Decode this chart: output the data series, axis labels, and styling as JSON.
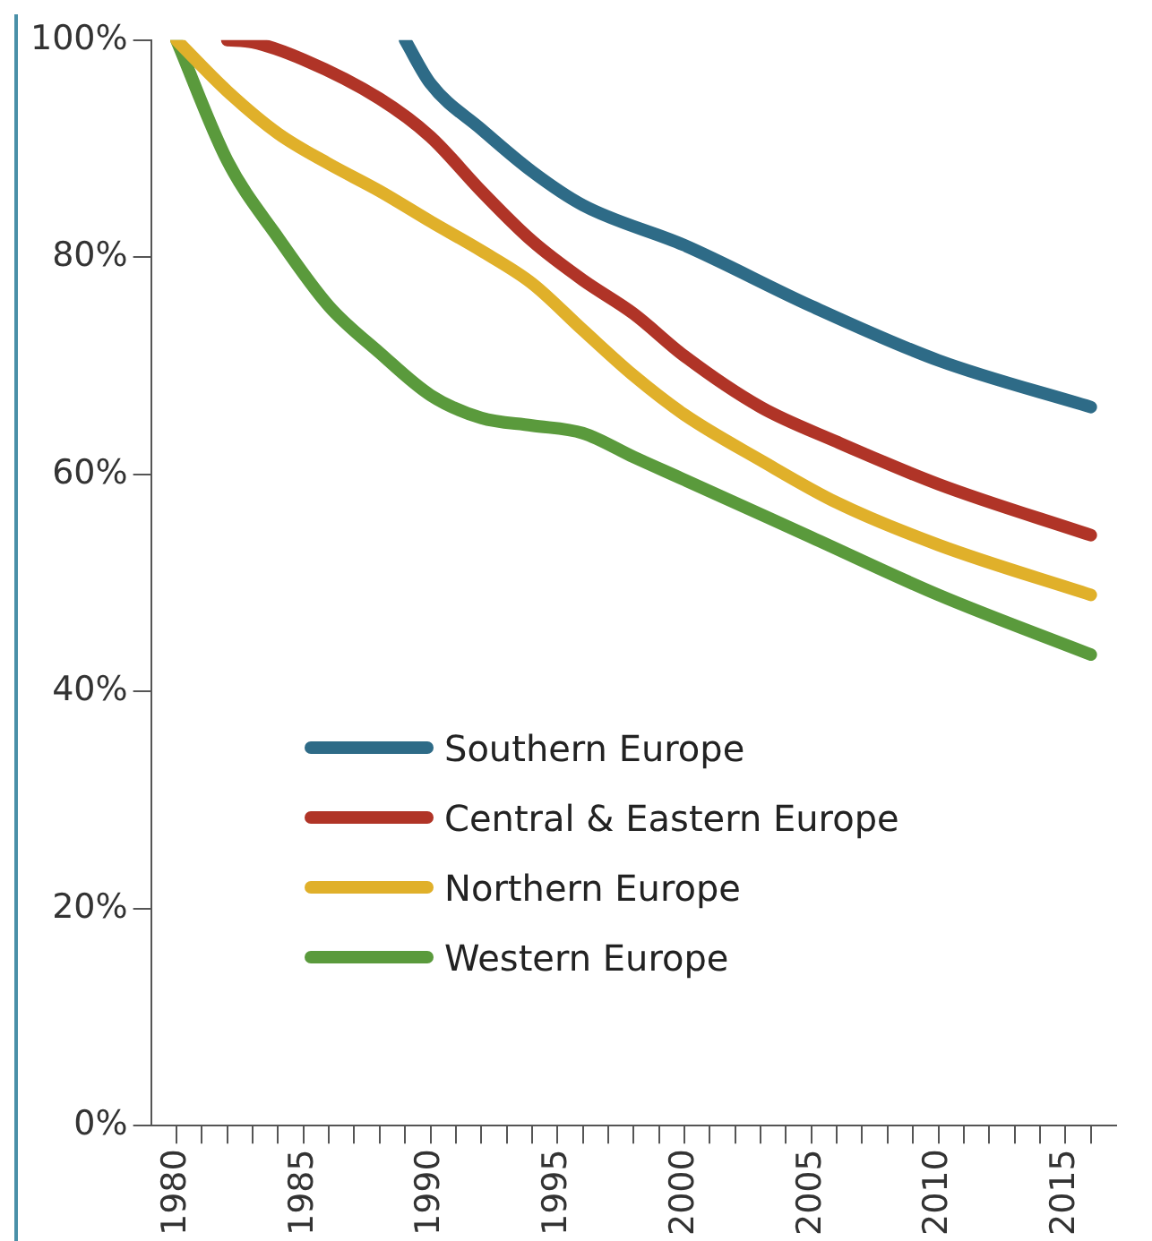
{
  "chart_data": {
    "type": "line",
    "xlim": [
      1979,
      2017
    ],
    "ylim": [
      0,
      100
    ],
    "xticks": [
      1980,
      {
        "value": 1981,
        "label": null
      },
      {
        "value": 1982,
        "label": null
      },
      {
        "value": 1983,
        "label": null
      },
      {
        "value": 1984,
        "label": null
      },
      1985,
      {
        "value": 1986,
        "label": null
      },
      {
        "value": 1987,
        "label": null
      },
      {
        "value": 1988,
        "label": null
      },
      {
        "value": 1989,
        "label": null
      },
      1990,
      {
        "value": 1991,
        "label": null
      },
      {
        "value": 1992,
        "label": null
      },
      {
        "value": 1993,
        "label": null
      },
      {
        "value": 1994,
        "label": null
      },
      1995,
      {
        "value": 1996,
        "label": null
      },
      {
        "value": 1997,
        "label": null
      },
      {
        "value": 1998,
        "label": null
      },
      {
        "value": 1999,
        "label": null
      },
      2000,
      {
        "value": 2001,
        "label": null
      },
      {
        "value": 2002,
        "label": null
      },
      {
        "value": 2003,
        "label": null
      },
      {
        "value": 2004,
        "label": null
      },
      2005,
      {
        "value": 2006,
        "label": null
      },
      {
        "value": 2007,
        "label": null
      },
      {
        "value": 2008,
        "label": null
      },
      {
        "value": 2009,
        "label": null
      },
      2010,
      {
        "value": 2011,
        "label": null
      },
      {
        "value": 2012,
        "label": null
      },
      {
        "value": 2013,
        "label": null
      },
      {
        "value": 2014,
        "label": null
      },
      2015,
      {
        "value": 2016,
        "label": null
      }
    ],
    "yticks": [
      {
        "value": 0,
        "label": "0%"
      },
      {
        "value": 20,
        "label": "20%"
      },
      {
        "value": 40,
        "label": "40%"
      },
      {
        "value": 60,
        "label": "60%"
      },
      {
        "value": 80,
        "label": "80%"
      },
      {
        "value": 100,
        "label": "100%"
      }
    ],
    "grid": false,
    "legend": "left",
    "marker": "none",
    "line_style": "solid",
    "series": [
      {
        "name": "Southern Europe",
        "color": "#2e6b87",
        "x": [
          1989,
          1990,
          1992,
          1994,
          1996,
          2000,
          2005,
          2010,
          2016
        ],
        "values": [
          100,
          96,
          91.8,
          87.9,
          84.8,
          81.1,
          75.5,
          70.5,
          66.2
        ]
      },
      {
        "name": "Central & Eastern Europe",
        "color": "#b03427",
        "x": [
          1982,
          1983,
          1985,
          1988,
          1990,
          1992,
          1994,
          1996,
          1998,
          2000,
          2003,
          2006,
          2010,
          2016
        ],
        "values": [
          100,
          99.8,
          98.2,
          94.6,
          91.1,
          86.1,
          81.5,
          77.9,
          74.8,
          70.9,
          66.2,
          63,
          59.1,
          54.4
        ]
      },
      {
        "name": "Northern Europe",
        "color": "#e0b02a",
        "x": [
          1980,
          1982,
          1984,
          1986,
          1988,
          1990,
          1992,
          1994,
          1996,
          1998,
          2000,
          2003,
          2006,
          2010,
          2016
        ],
        "values": [
          100,
          95.3,
          91.4,
          88.6,
          86.1,
          83.3,
          80.6,
          77.6,
          73.3,
          69.1,
          65.5,
          61.3,
          57.4,
          53.5,
          48.9
        ]
      },
      {
        "name": "Western Europe",
        "color": "#5a9a3c",
        "x": [
          1980,
          1982,
          1984,
          1986,
          1988,
          1990,
          1992,
          1994,
          1996,
          1998,
          2000,
          2005,
          2010,
          2016
        ],
        "values": [
          100,
          88.9,
          81.8,
          75.5,
          71.2,
          67.3,
          65.2,
          64.5,
          63.8,
          61.6,
          59.5,
          54.2,
          48.9,
          43.4
        ]
      }
    ]
  }
}
